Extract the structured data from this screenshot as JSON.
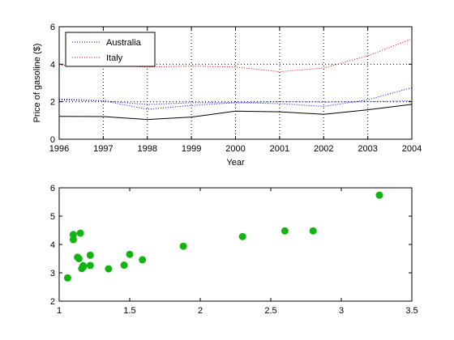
{
  "colors": {
    "axis": "#000000",
    "grid": "#000000",
    "australia": "#0000ff",
    "italy": "#ff0000",
    "third_series": "#000000",
    "fourth_series": "#0000ff",
    "scatter": "#11b511"
  },
  "chart_data": [
    {
      "type": "line",
      "xlabel": "Year",
      "ylabel": "Price of gasoline ($)",
      "xlim": [
        1996,
        2004
      ],
      "ylim": [
        0,
        6
      ],
      "xticks": [
        "1996",
        "1997",
        "1998",
        "1999",
        "2000",
        "2001",
        "2002",
        "2003",
        "2004"
      ],
      "yticks": [
        "0",
        "2",
        "4",
        "6"
      ],
      "grid": true,
      "legend_position": "top-left",
      "x": [
        1996,
        1997,
        1998,
        1999,
        2000,
        2001,
        2002,
        2003,
        2004
      ],
      "series": [
        {
          "name": "Australia",
          "style": "dotted",
          "color_key": "australia",
          "values": [
            2.1,
            2.05,
            1.6,
            1.8,
            1.95,
            1.9,
            1.75,
            2.1,
            2.75
          ]
        },
        {
          "name": "Italy",
          "style": "dotted",
          "color_key": "italy",
          "values": [
            3.95,
            3.95,
            3.85,
            3.9,
            3.85,
            3.6,
            3.8,
            4.45,
            5.35
          ]
        },
        {
          "style": "solid",
          "color_key": "third_series",
          "values": [
            1.22,
            1.21,
            1.05,
            1.18,
            1.5,
            1.46,
            1.33,
            1.57,
            1.86
          ]
        },
        {
          "style": "dotted",
          "color_key": "fourth_series",
          "values": [
            2.15,
            2.05,
            1.85,
            1.95,
            1.95,
            2.0,
            1.98,
            2.0,
            2.05
          ]
        }
      ],
      "legend": [
        "Australia",
        "Italy"
      ]
    },
    {
      "type": "scatter",
      "xlim": [
        1,
        3.5
      ],
      "ylim": [
        2,
        6
      ],
      "xticks": [
        "1",
        "1.5",
        "2",
        "2.5",
        "3",
        "3.5"
      ],
      "yticks": [
        "2",
        "3",
        "4",
        "5",
        "6"
      ],
      "grid": false,
      "points": [
        [
          1.06,
          2.82
        ],
        [
          1.1,
          4.17
        ],
        [
          1.1,
          4.35
        ],
        [
          1.13,
          3.55
        ],
        [
          1.14,
          3.5
        ],
        [
          1.15,
          4.4
        ],
        [
          1.16,
          3.15
        ],
        [
          1.17,
          3.25
        ],
        [
          1.17,
          3.2
        ],
        [
          1.22,
          3.62
        ],
        [
          1.22,
          3.26
        ],
        [
          1.35,
          3.14
        ],
        [
          1.46,
          3.27
        ],
        [
          1.5,
          3.65
        ],
        [
          1.59,
          3.46
        ],
        [
          1.88,
          3.94
        ],
        [
          2.3,
          4.28
        ],
        [
          2.6,
          4.48
        ],
        [
          2.8,
          4.48
        ],
        [
          3.27,
          5.74
        ]
      ]
    }
  ]
}
